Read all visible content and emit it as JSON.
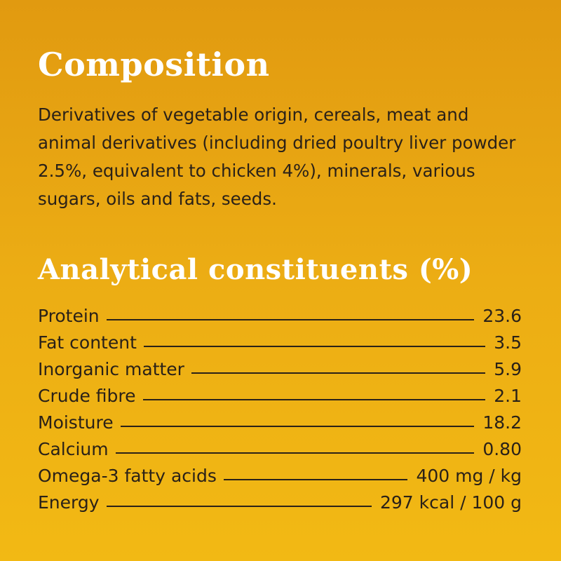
{
  "composition": {
    "title": "Composition",
    "text": "Derivatives of vegetable origin, cereals, meat and animal derivatives (including dried poultry liver powder 2.5%, equivalent to chicken 4%), minerals, various sugars, oils and fats, seeds."
  },
  "analytical": {
    "title": "Analytical constituents (%)",
    "rows": [
      {
        "name": "Protein",
        "value": "23.6"
      },
      {
        "name": "Fat content",
        "value": "3.5"
      },
      {
        "name": "Inorganic matter",
        "value": "5.9"
      },
      {
        "name": "Crude fibre",
        "value": "2.1"
      },
      {
        "name": "Moisture",
        "value": "18.2"
      },
      {
        "name": "Calcium",
        "value": "0.80"
      },
      {
        "name": "Omega-3 fatty acids",
        "value": "400 mg / kg"
      },
      {
        "name": "Energy",
        "value": "297 kcal / 100 g"
      }
    ]
  },
  "colors": {
    "background_top": "#e19a10",
    "background_bottom": "#f2b914",
    "heading": "#ffffff",
    "text": "#2a2118"
  }
}
